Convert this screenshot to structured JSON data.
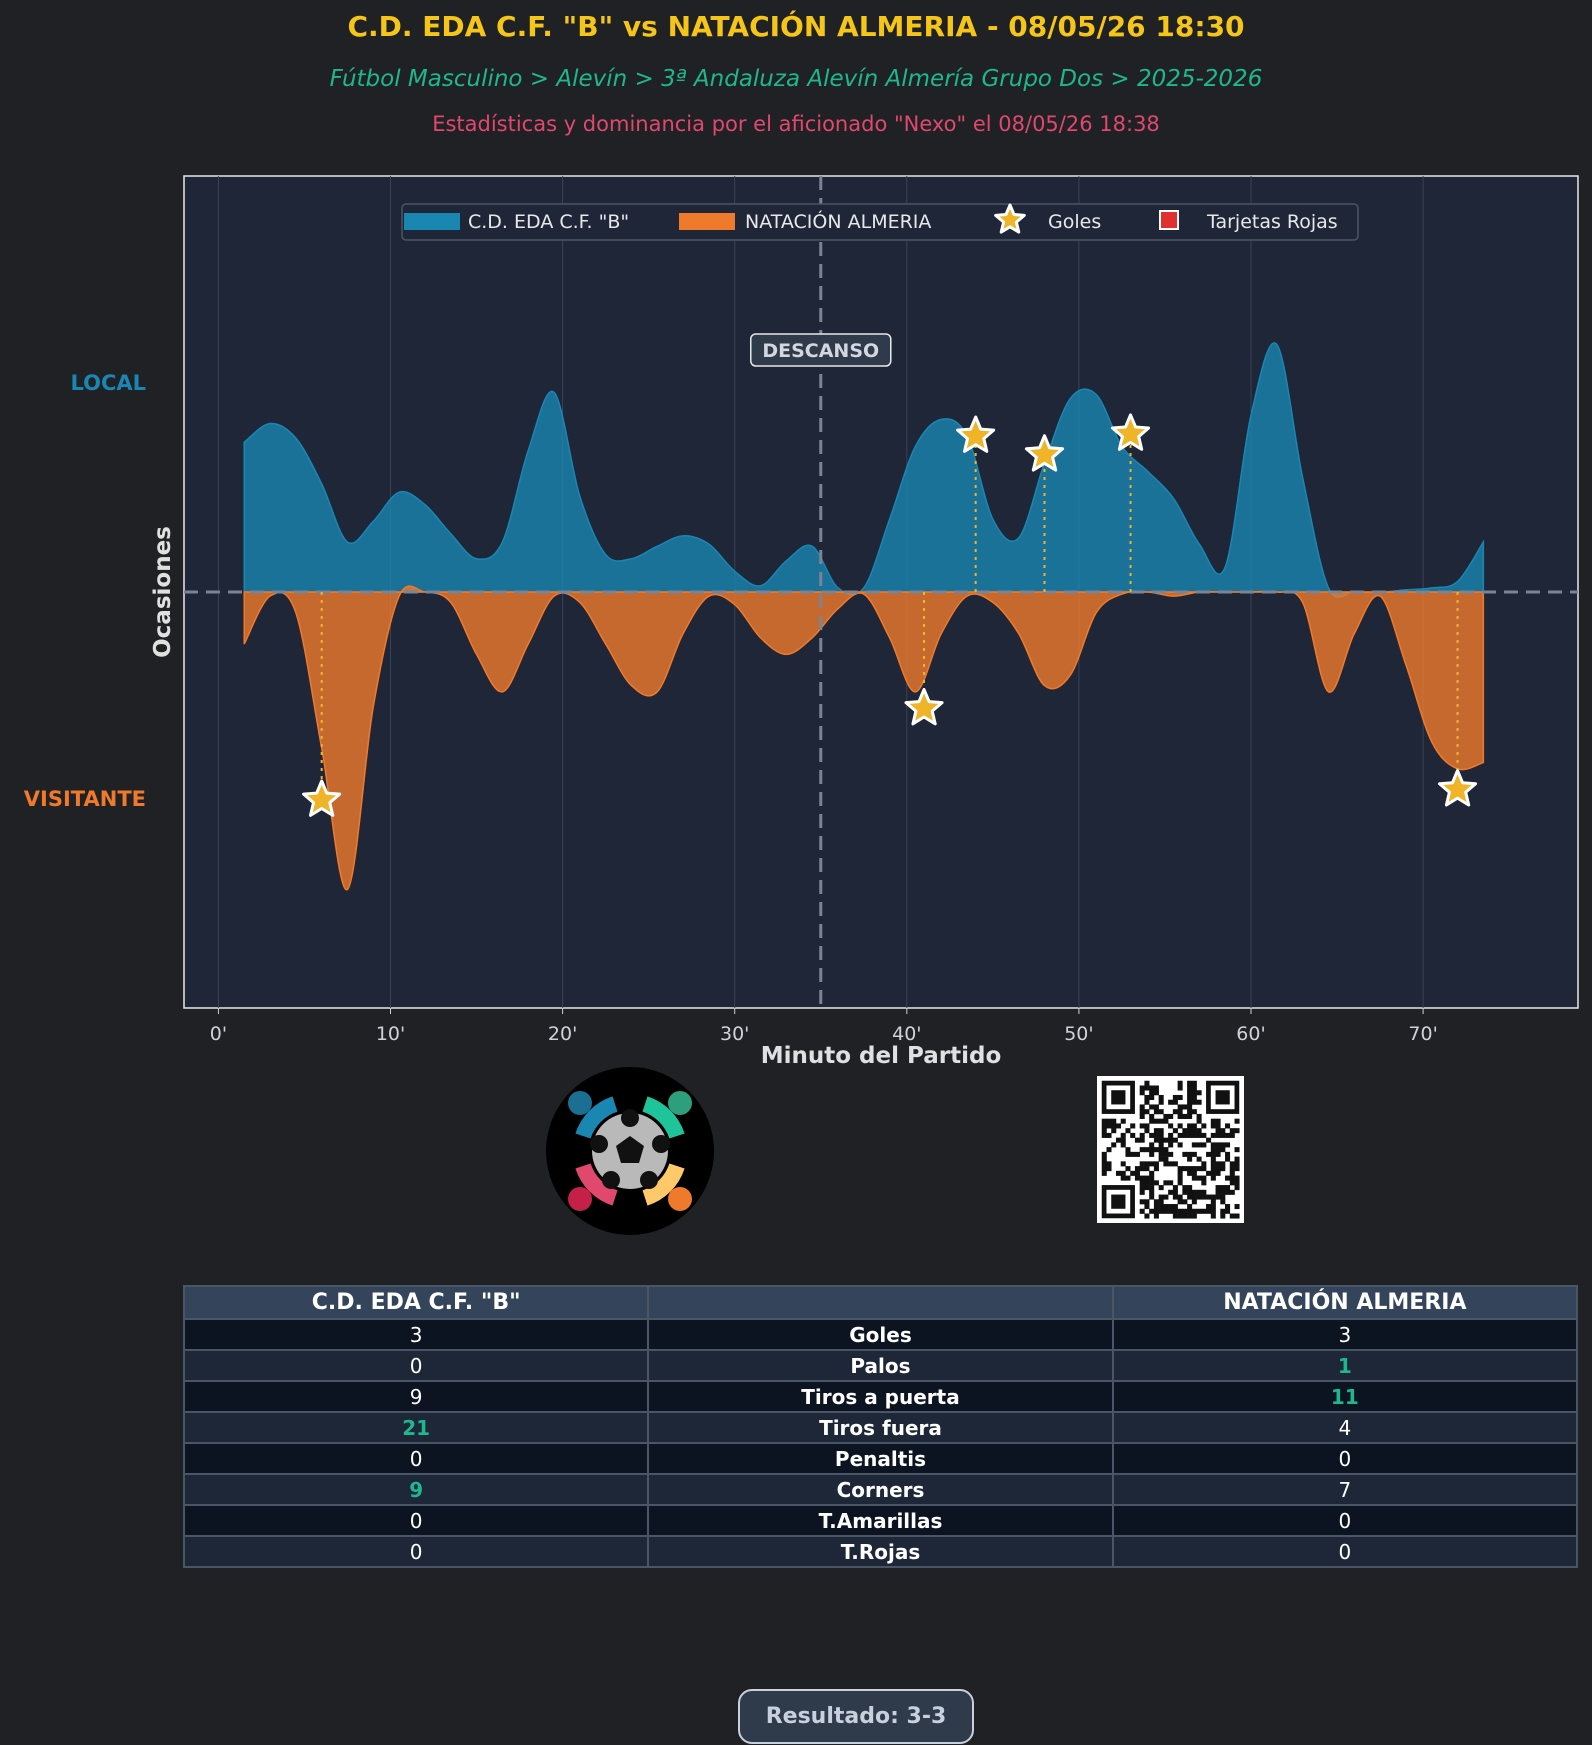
{
  "header": {
    "title": "C.D. EDA C.F. \"B\" vs NATACIÓN ALMERIA - 08/05/26 18:30",
    "subtitle": "Fútbol Masculino > Alevín > 3ª Andaluza Alevín Almería Grupo Dos > 2025-2026",
    "credit": "Estadísticas y dominancia por el aficionado \"Nexo\" el 08/05/26 18:38"
  },
  "colors": {
    "title": "#f5c518",
    "subtitle": "#1fb88e",
    "credit": "#e0486e",
    "home": "#1a86b2",
    "away": "#f07a2c",
    "goal_star": "#f0b429",
    "red_card": "#e03030",
    "plot_bg": "#1e2638",
    "page_bg": "#1f2124"
  },
  "chart_data": {
    "type": "area",
    "xlabel": "Minuto del Partido",
    "ylabel": "Ocasiones",
    "side_labels": {
      "home": "LOCAL",
      "away": "VISITANTE"
    },
    "xlim": [
      -2,
      79
    ],
    "ylim": [
      -2.0,
      2.0
    ],
    "x_ticks": [
      0,
      10,
      20,
      30,
      40,
      50,
      60,
      70
    ],
    "x_tick_labels": [
      "0'",
      "10'",
      "20'",
      "30'",
      "40'",
      "50'",
      "60'",
      "70'"
    ],
    "halftime_minute": 35,
    "halftime_label": "DESCANSO",
    "legend": [
      "C.D. EDA C.F. \"B\"",
      "NATACIÓN ALMERIA",
      "Goles",
      "Tarjetas Rojas"
    ],
    "legend_position": "top-center",
    "series": [
      {
        "name": "C.D. EDA C.F. \"B\"",
        "side": "home",
        "x": [
          1.5,
          3,
          4.5,
          6,
          7.5,
          9,
          10.5,
          12,
          13.5,
          15,
          16.5,
          18,
          19.5,
          21,
          22.5,
          24,
          25.5,
          27,
          28.5,
          30,
          31.5,
          33,
          34.5,
          36,
          37.5,
          39,
          40.5,
          42,
          43.5,
          45,
          46.5,
          48,
          49.5,
          51,
          52.5,
          54,
          55.5,
          57,
          58.5,
          60,
          61.5,
          63,
          64.5,
          66,
          67.5,
          69,
          70.5,
          72,
          73.5
        ],
        "values": [
          0.72,
          0.81,
          0.74,
          0.52,
          0.24,
          0.34,
          0.48,
          0.42,
          0.28,
          0.16,
          0.24,
          0.68,
          0.96,
          0.46,
          0.18,
          0.16,
          0.22,
          0.27,
          0.23,
          0.1,
          0.03,
          0.15,
          0.22,
          0.02,
          0.02,
          0.35,
          0.7,
          0.83,
          0.75,
          0.35,
          0.26,
          0.62,
          0.93,
          0.95,
          0.7,
          0.58,
          0.45,
          0.23,
          0.12,
          0.85,
          1.19,
          0.55,
          0.02,
          0.0,
          0.0,
          0.01,
          0.02,
          0.05,
          0.24
        ]
      },
      {
        "name": "NATACIÓN ALMERIA",
        "side": "away",
        "x": [
          1.5,
          3,
          4.5,
          6,
          7.5,
          9,
          10.5,
          12,
          13.5,
          15,
          16.5,
          18,
          19.5,
          21,
          22.5,
          24,
          25.5,
          27,
          28.5,
          30,
          31.5,
          33,
          34.5,
          36,
          37.5,
          39,
          40.5,
          42,
          43.5,
          45,
          46.5,
          48,
          49.5,
          51,
          52.5,
          54,
          55.5,
          57,
          58.5,
          60,
          61.5,
          63,
          64.5,
          66,
          67.5,
          69,
          70.5,
          72,
          73.5
        ],
        "values": [
          -0.25,
          -0.02,
          -0.1,
          -0.75,
          -1.43,
          -0.55,
          -0.02,
          0.0,
          -0.05,
          -0.3,
          -0.48,
          -0.25,
          -0.02,
          -0.05,
          -0.25,
          -0.45,
          -0.48,
          -0.2,
          -0.02,
          -0.06,
          -0.22,
          -0.3,
          -0.22,
          -0.08,
          -0.01,
          -0.22,
          -0.48,
          -0.2,
          -0.02,
          -0.05,
          -0.2,
          -0.45,
          -0.4,
          -0.1,
          -0.01,
          0.0,
          -0.02,
          0.0,
          0.0,
          0.0,
          0.0,
          -0.05,
          -0.48,
          -0.2,
          -0.02,
          -0.35,
          -0.72,
          -0.85,
          -0.82
        ]
      }
    ],
    "goals": [
      {
        "team": "home",
        "minute": 44,
        "y": 0.75
      },
      {
        "team": "home",
        "minute": 48,
        "y": 0.66
      },
      {
        "team": "home",
        "minute": 53,
        "y": 0.76
      },
      {
        "team": "away",
        "minute": 6,
        "y": -1.0
      },
      {
        "team": "away",
        "minute": 41,
        "y": -0.56
      },
      {
        "team": "away",
        "minute": 72,
        "y": -0.95
      }
    ],
    "red_cards": []
  },
  "table": {
    "home_team": "C.D. EDA C.F. \"B\"",
    "away_team": "NATACIÓN ALMERIA",
    "rows": [
      {
        "label": "Goles",
        "home": "3",
        "away": "3",
        "highlight": ""
      },
      {
        "label": "Palos",
        "home": "0",
        "away": "1",
        "highlight": "away"
      },
      {
        "label": "Tiros a puerta",
        "home": "9",
        "away": "11",
        "highlight": "away"
      },
      {
        "label": "Tiros fuera",
        "home": "21",
        "away": "4",
        "highlight": "home"
      },
      {
        "label": "Penaltis",
        "home": "0",
        "away": "0",
        "highlight": ""
      },
      {
        "label": "Corners",
        "home": "9",
        "away": "7",
        "highlight": "home"
      },
      {
        "label": "T.Amarillas",
        "home": "0",
        "away": "0",
        "highlight": ""
      },
      {
        "label": "T.Rojas",
        "home": "0",
        "away": "0",
        "highlight": ""
      }
    ]
  },
  "result": "Resultado: 3-3"
}
